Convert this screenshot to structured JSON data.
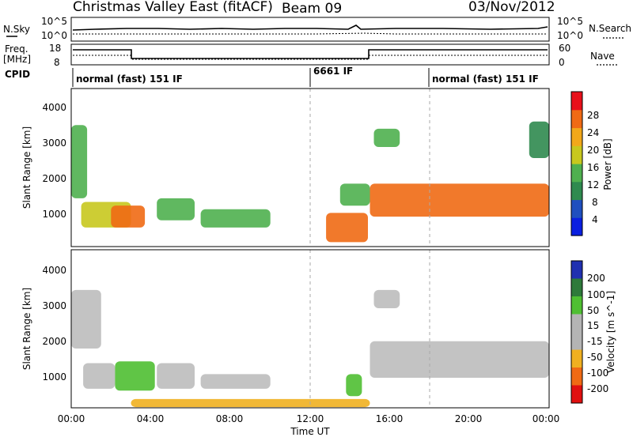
{
  "header": {
    "station": "Christmas Valley East (fitACF)",
    "beam": "Beam 09",
    "date": "03/Nov/2012"
  },
  "noise_panel": {
    "left_label": "N.Sky",
    "right_label": "N.Search",
    "top_tick": "10^5",
    "bottom_tick": "10^0"
  },
  "freq_panel": {
    "left_label_1": "Freq.",
    "left_label_2": "[MHz]",
    "right_label": "Nave",
    "left_ticks": [
      "18",
      "8"
    ],
    "right_ticks": [
      "60",
      "0"
    ]
  },
  "cpid_panel": {
    "label": "CPID",
    "segments": [
      {
        "name": "normal (fast) 151 IF",
        "start": "00:00"
      },
      {
        "name": "6661 IF",
        "start": "12:00"
      },
      {
        "name": "normal (fast) 151 IF",
        "start": "18:00"
      }
    ]
  },
  "colors": {
    "power_scale": [
      "#0a1fe0",
      "#1f4fbf",
      "#2f8a4f",
      "#4fb04f",
      "#c8c81e",
      "#f2a81a",
      "#f06a14",
      "#e8101a"
    ],
    "velocity_scale": [
      "#2030b0",
      "#2e7a3a",
      "#4fbf32",
      "#b4b4b4",
      "#b4b4b4",
      "#f0b020",
      "#f06a14",
      "#e01010"
    ],
    "ground_scatter": "#bcbcbc"
  },
  "chart_data": [
    {
      "type": "heatmap",
      "name": "power",
      "ylabel": "Slant Range [km]",
      "yticks": [
        1000,
        2000,
        3000,
        4000
      ],
      "ylim": [
        180,
        4500
      ],
      "xlim": [
        "00:00",
        "24:00"
      ],
      "colorbar": {
        "label": "Power [dB]",
        "ticks": [
          4,
          8,
          12,
          16,
          20,
          24,
          28
        ]
      },
      "regions": [
        {
          "t0": 0.0,
          "t1": 0.8,
          "r0": 1500,
          "r1": 3500,
          "value": 14
        },
        {
          "t0": 0.5,
          "t1": 3.0,
          "r0": 700,
          "r1": 1400,
          "value": 18
        },
        {
          "t0": 2.0,
          "t1": 3.7,
          "r0": 700,
          "r1": 1300,
          "value": 26
        },
        {
          "t0": 4.3,
          "t1": 6.2,
          "r0": 900,
          "r1": 1500,
          "value": 16
        },
        {
          "t0": 6.5,
          "t1": 10.0,
          "r0": 700,
          "r1": 1200,
          "value": 14
        },
        {
          "t0": 12.8,
          "t1": 14.9,
          "r0": 300,
          "r1": 1100,
          "value": 26
        },
        {
          "t0": 13.5,
          "t1": 15.0,
          "r0": 1300,
          "r1": 1900,
          "value": 14
        },
        {
          "t0": 15.0,
          "t1": 24.0,
          "r0": 1000,
          "r1": 1900,
          "value": 26
        },
        {
          "t0": 15.2,
          "t1": 16.5,
          "r0": 2900,
          "r1": 3400,
          "value": 16
        },
        {
          "t0": 23.0,
          "t1": 24.0,
          "r0": 2600,
          "r1": 3600,
          "value": 10
        }
      ]
    },
    {
      "type": "heatmap",
      "name": "velocity",
      "ylabel": "Slant Range [km]",
      "yticks": [
        1000,
        2000,
        3000,
        4000
      ],
      "ylim": [
        180,
        4500
      ],
      "xlim": [
        "00:00",
        "24:00"
      ],
      "xlabel": "Time UT",
      "xticks": [
        "00:00",
        "04:00",
        "08:00",
        "12:00",
        "16:00",
        "20:00",
        "00:00"
      ],
      "colorbar": {
        "label": "Velocity [m s^-1]",
        "ticks": [
          200,
          100,
          50,
          15,
          -15,
          -50,
          -100,
          -200
        ]
      },
      "regions": [
        {
          "t0": 0.0,
          "t1": 1.5,
          "r0": 1800,
          "r1": 3400,
          "value": 0,
          "ground_scatter": true
        },
        {
          "t0": 0.6,
          "t1": 2.2,
          "r0": 700,
          "r1": 1400,
          "value": 0,
          "ground_scatter": true
        },
        {
          "t0": 2.2,
          "t1": 4.2,
          "r0": 650,
          "r1": 1450,
          "value": 40
        },
        {
          "t0": 4.3,
          "t1": 6.2,
          "r0": 700,
          "r1": 1400,
          "value": 0,
          "ground_scatter": true
        },
        {
          "t0": 6.5,
          "t1": 10.0,
          "r0": 700,
          "r1": 1100,
          "value": 0,
          "ground_scatter": true
        },
        {
          "t0": 13.8,
          "t1": 14.6,
          "r0": 500,
          "r1": 1100,
          "value": 40
        },
        {
          "t0": 15.0,
          "t1": 24.0,
          "r0": 1000,
          "r1": 2000,
          "value": 0,
          "ground_scatter": true
        },
        {
          "t0": 15.2,
          "t1": 16.5,
          "r0": 2900,
          "r1": 3400,
          "value": 0,
          "ground_scatter": true
        },
        {
          "t0": 3.0,
          "t1": 15.0,
          "r0": 200,
          "r1": 420,
          "value": -40
        }
      ]
    }
  ]
}
